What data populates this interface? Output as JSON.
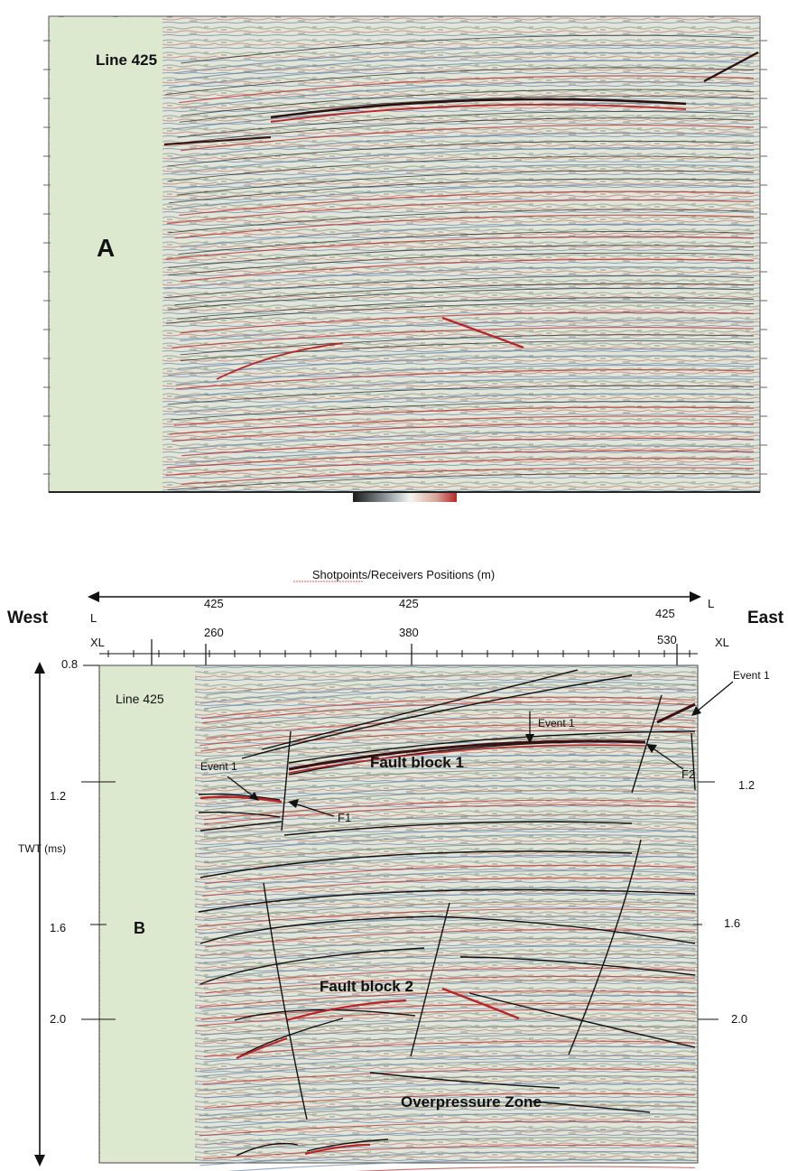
{
  "panel_a": {
    "line_label": "Line 425",
    "panel_letter": "A"
  },
  "panel_b": {
    "axis_title": "Shotpoints/Receivers Positions (m)",
    "direction_west": "West",
    "direction_east": "East",
    "row_label_line": "L",
    "row_label_crossline": "XL",
    "top_ticks": [
      {
        "line": "425",
        "crossline": "260"
      },
      {
        "line": "425",
        "crossline": "380"
      },
      {
        "line": "425",
        "crossline": "530"
      }
    ],
    "twt_label": "TWT (ms)",
    "twt_ticks": [
      "0.8",
      "1.2",
      "1.6",
      "2.0"
    ],
    "twt_ticks_right": [
      "1.2",
      "1.6",
      "2.0"
    ],
    "line_label": "Line 425",
    "panel_letter": "B",
    "annotations": {
      "event1_left": "Event 1",
      "event1_mid": "Event 1",
      "event1_right": "Event 1",
      "fault_f1": "F1",
      "fault_f2": "F2",
      "fault_block_1": "Fault block 1",
      "fault_block_2": "Fault block 2",
      "overpressure": "Overpressure Zone"
    }
  },
  "colors": {
    "seismic_background": "#e4e8dc",
    "mute_zone": "#dde9cf",
    "reflector_red": "#b8262a",
    "reflector_dark": "#222222",
    "reflector_blue": "#6c86a4",
    "colorbar_low": "#1a1a1a",
    "colorbar_mid": "#f2f2f2",
    "colorbar_high": "#b8262a"
  }
}
